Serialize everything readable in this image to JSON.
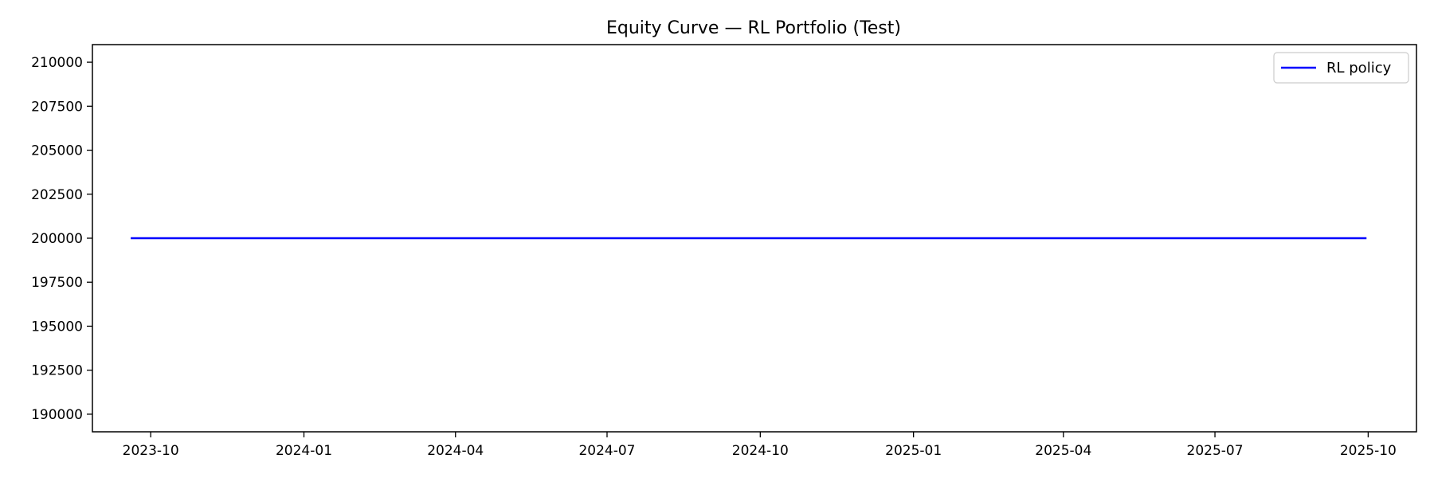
{
  "chart_data": {
    "type": "line",
    "title": "Equity Curve — RL Portfolio (Test)",
    "xlabel": "",
    "ylabel": "",
    "x_axis": {
      "type": "date",
      "range": [
        "2023-08-27",
        "2025-10-30"
      ],
      "ticks": [
        "2023-10-01",
        "2024-01-01",
        "2024-04-01",
        "2024-07-01",
        "2024-10-01",
        "2025-01-01",
        "2025-04-01",
        "2025-07-01",
        "2025-10-01"
      ],
      "tick_labels": [
        "2023-10",
        "2024-01",
        "2024-04",
        "2024-07",
        "2024-10",
        "2025-01",
        "2025-04",
        "2025-07",
        "2025-10"
      ]
    },
    "y_axis": {
      "range": [
        189000,
        211000
      ],
      "ticks": [
        190000,
        192500,
        195000,
        197500,
        200000,
        202500,
        205000,
        207500,
        210000
      ],
      "tick_labels": [
        "190000",
        "192500",
        "195000",
        "197500",
        "200000",
        "202500",
        "205000",
        "207500",
        "210000"
      ]
    },
    "grid": false,
    "legend": {
      "placement": "top-right",
      "entries": [
        "RL policy"
      ]
    },
    "series": [
      {
        "name": "RL policy",
        "color": "#0000ff",
        "points": [
          {
            "x": "2023-09-19",
            "y": 200000
          },
          {
            "x": "2025-09-30",
            "y": 200000
          }
        ]
      }
    ]
  }
}
